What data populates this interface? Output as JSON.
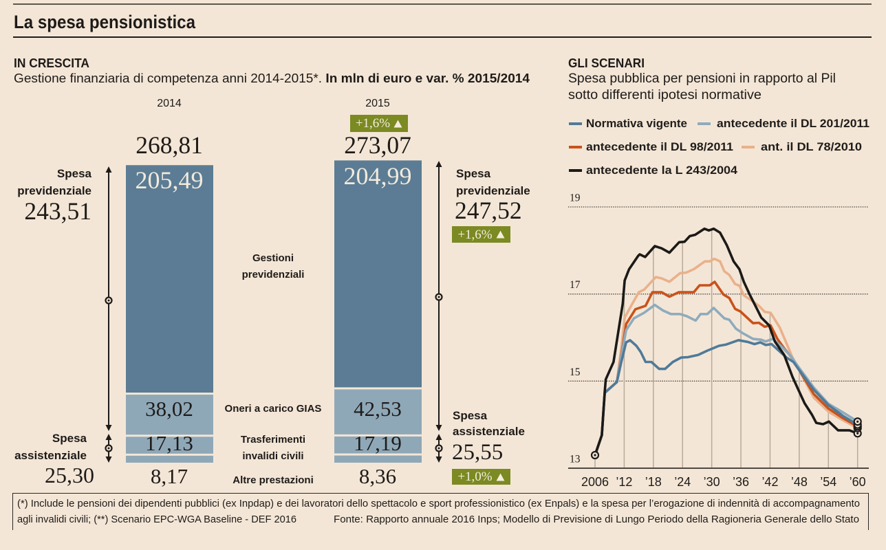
{
  "page": {
    "title": "La spesa pensionistica"
  },
  "colors": {
    "background": "#f4e6d6",
    "badge": "#7b8a22",
    "badge_text": "#f4eedc"
  },
  "chart_data": [
    {
      "type": "bar",
      "stacked": true,
      "title": "IN CRESCITA",
      "subtitle": "Gestione finanziaria di competenza anni 2014-2015*. ",
      "subtitle_bold": "In mln di euro e var. % 2015/2014",
      "unit": "mln di euro",
      "categories": [
        "2014",
        "2015"
      ],
      "series": [
        {
          "name": "Gestioni previdenziali",
          "label_lines": [
            "Gestioni",
            "previdenziali"
          ],
          "values": [
            205.49,
            204.99
          ],
          "color": "#5b7c94"
        },
        {
          "name": "Oneri a carico GIAS",
          "label_lines": [
            "Oneri a carico GIAS"
          ],
          "values": [
            38.02,
            42.53
          ],
          "color": "#8fa8b8"
        },
        {
          "name": "Trasferimenti invalidi civili",
          "label_lines": [
            "Trasferimenti",
            "invalidi civili"
          ],
          "values": [
            17.13,
            17.19
          ],
          "color": "#8fa8b8"
        },
        {
          "name": "Altre prestazioni",
          "label_lines": [
            "Altre prestazioni"
          ],
          "values": [
            8.17,
            8.36
          ],
          "color": "#8fa8b8"
        }
      ],
      "totals": [
        268.81,
        273.07
      ],
      "total_change": "+1,6%",
      "groups": [
        {
          "name": "Spesa previdenziale",
          "label_lines": [
            "Spesa",
            "previdenziale"
          ],
          "values": [
            243.51,
            247.52
          ],
          "change": "+1,6%"
        },
        {
          "name": "Spesa assistenziale",
          "label_lines": [
            "Spesa",
            "assistenziale"
          ],
          "values": [
            25.3,
            25.55
          ],
          "change": "+1,0%"
        }
      ],
      "change_icon": "triangle-up-icon"
    },
    {
      "type": "line",
      "title": "GLI SCENARI",
      "subtitle_lines": [
        "Spesa pubblica per pensioni in rapporto al Pil",
        "sotto differenti ipotesi normative"
      ],
      "xlabel": "",
      "ylabel": "",
      "xlim": [
        2006,
        2060
      ],
      "ylim": [
        13,
        19
      ],
      "yticks": [
        13,
        15,
        17,
        19
      ],
      "ytick_labels": [
        "13",
        "15",
        "17",
        "19"
      ],
      "xticks": [
        2006,
        2012,
        2018,
        2024,
        2030,
        2036,
        2042,
        2048,
        2054,
        2060
      ],
      "xtick_labels": [
        "2006",
        "’12",
        "’18",
        "’24",
        "’30",
        "’36",
        "’42",
        "’48",
        "’54",
        "’60"
      ],
      "grid": {
        "horizontal": "dotted",
        "vertical": "drop-lines"
      },
      "legend_position": "top-left",
      "markers": [
        "start",
        "end"
      ],
      "series": [
        {
          "name": "Normativa vigente",
          "color": "#4f7a99",
          "points": [
            [
              2006,
              13.3
            ],
            [
              2007.4,
              13.76
            ],
            [
              2008,
              14.73
            ],
            [
              2010.5,
              14.98
            ],
            [
              2011.4,
              15.44
            ],
            [
              2012.4,
              15.89
            ],
            [
              2013.2,
              15.94
            ],
            [
              2014.5,
              15.81
            ],
            [
              2015.4,
              15.67
            ],
            [
              2016.4,
              15.44
            ],
            [
              2017.6,
              15.44
            ],
            [
              2019.2,
              15.28
            ],
            [
              2020.4,
              15.28
            ],
            [
              2022,
              15.44
            ],
            [
              2023.7,
              15.54
            ],
            [
              2025.1,
              15.55
            ],
            [
              2027.2,
              15.6
            ],
            [
              2029.1,
              15.7
            ],
            [
              2031.5,
              15.81
            ],
            [
              2033,
              15.84
            ],
            [
              2035.5,
              15.94
            ],
            [
              2037.4,
              15.9
            ],
            [
              2038.8,
              15.85
            ],
            [
              2040,
              15.89
            ],
            [
              2041.1,
              15.83
            ],
            [
              2042.3,
              15.85
            ],
            [
              2043.5,
              15.73
            ],
            [
              2045.4,
              15.54
            ],
            [
              2046.8,
              15.44
            ],
            [
              2048,
              15.25
            ],
            [
              2051,
              14.8
            ],
            [
              2054,
              14.45
            ],
            [
              2057,
              14.2
            ],
            [
              2060,
              14.0
            ]
          ]
        },
        {
          "name": "antecedente il DL 201/2011",
          "color": "#8eabbd",
          "points": [
            [
              2006,
              13.3
            ],
            [
              2007.4,
              13.76
            ],
            [
              2008,
              14.73
            ],
            [
              2010.5,
              14.98
            ],
            [
              2011.7,
              15.75
            ],
            [
              2012.4,
              16.17
            ],
            [
              2014,
              16.44
            ],
            [
              2016.1,
              16.57
            ],
            [
              2018.3,
              16.75
            ],
            [
              2020,
              16.62
            ],
            [
              2021.6,
              16.54
            ],
            [
              2023.5,
              16.54
            ],
            [
              2024.9,
              16.49
            ],
            [
              2026.7,
              16.39
            ],
            [
              2027.7,
              16.54
            ],
            [
              2029.1,
              16.54
            ],
            [
              2030.4,
              16.68
            ],
            [
              2032.6,
              16.44
            ],
            [
              2033.6,
              16.41
            ],
            [
              2035,
              16.2
            ],
            [
              2036.4,
              16.1
            ],
            [
              2038.5,
              15.97
            ],
            [
              2040.2,
              15.95
            ],
            [
              2041.1,
              15.91
            ],
            [
              2042.5,
              15.97
            ],
            [
              2044,
              15.83
            ],
            [
              2046.3,
              15.57
            ],
            [
              2048,
              15.3
            ],
            [
              2051,
              14.85
            ],
            [
              2054,
              14.48
            ],
            [
              2057,
              14.28
            ],
            [
              2060,
              14.07
            ]
          ]
        },
        {
          "name": "antecedente il DL 98/2011",
          "color": "#c9521b",
          "points": [
            [
              2006,
              13.3
            ],
            [
              2007.4,
              13.76
            ],
            [
              2008,
              14.73
            ],
            [
              2010.5,
              14.98
            ],
            [
              2011.7,
              15.8
            ],
            [
              2012.4,
              16.31
            ],
            [
              2014.3,
              16.65
            ],
            [
              2016.4,
              16.73
            ],
            [
              2017.8,
              17.04
            ],
            [
              2019.7,
              17.04
            ],
            [
              2021.3,
              16.94
            ],
            [
              2023.2,
              17.04
            ],
            [
              2026.3,
              17.04
            ],
            [
              2027.5,
              17.2
            ],
            [
              2029.6,
              17.2
            ],
            [
              2030.6,
              17.28
            ],
            [
              2032.4,
              16.99
            ],
            [
              2033.6,
              16.91
            ],
            [
              2034.8,
              16.66
            ],
            [
              2035.9,
              16.6
            ],
            [
              2038.5,
              16.33
            ],
            [
              2039.7,
              16.34
            ],
            [
              2040.9,
              16.25
            ],
            [
              2042.1,
              16.28
            ],
            [
              2043.5,
              15.97
            ],
            [
              2044.9,
              15.75
            ],
            [
              2046.6,
              15.52
            ],
            [
              2048,
              15.25
            ],
            [
              2051,
              14.7
            ],
            [
              2054,
              14.37
            ],
            [
              2057,
              14.15
            ],
            [
              2060,
              13.96
            ]
          ]
        },
        {
          "name": "ant. il DL 78/2010",
          "color": "#e9b18b",
          "points": [
            [
              2006,
              13.3
            ],
            [
              2007.4,
              13.76
            ],
            [
              2008,
              14.73
            ],
            [
              2010.5,
              14.98
            ],
            [
              2011.5,
              15.85
            ],
            [
              2012.1,
              16.46
            ],
            [
              2013.8,
              16.8
            ],
            [
              2015,
              17.04
            ],
            [
              2016.1,
              17.1
            ],
            [
              2018.5,
              17.39
            ],
            [
              2019.7,
              17.36
            ],
            [
              2021.3,
              17.28
            ],
            [
              2023.5,
              17.48
            ],
            [
              2024.7,
              17.49
            ],
            [
              2026.3,
              17.57
            ],
            [
              2028.6,
              17.75
            ],
            [
              2029.6,
              17.75
            ],
            [
              2030.5,
              17.81
            ],
            [
              2031.7,
              17.75
            ],
            [
              2032.6,
              17.52
            ],
            [
              2033.6,
              17.44
            ],
            [
              2034.8,
              17.23
            ],
            [
              2035.7,
              17.19
            ],
            [
              2036.6,
              16.97
            ],
            [
              2038.1,
              16.86
            ],
            [
              2039.7,
              16.73
            ],
            [
              2040.9,
              16.59
            ],
            [
              2042.1,
              16.57
            ],
            [
              2044,
              16.23
            ],
            [
              2045.6,
              15.81
            ],
            [
              2046.6,
              15.54
            ],
            [
              2048,
              15.25
            ],
            [
              2051,
              14.62
            ],
            [
              2054,
              14.3
            ],
            [
              2057,
              14.1
            ],
            [
              2060,
              13.92
            ]
          ]
        },
        {
          "name": "antecedente la L 243/2004",
          "color": "#1b1a18",
          "points": [
            [
              2006,
              13.3
            ],
            [
              2007.4,
              13.76
            ],
            [
              2008,
              14.75
            ],
            [
              2008.2,
              15.04
            ],
            [
              2009.8,
              15.44
            ],
            [
              2011.7,
              16.78
            ],
            [
              2012.1,
              17.31
            ],
            [
              2013,
              17.57
            ],
            [
              2014.9,
              17.88
            ],
            [
              2015.2,
              17.91
            ],
            [
              2016.3,
              17.85
            ],
            [
              2018.3,
              18.1
            ],
            [
              2019.7,
              18.05
            ],
            [
              2021.3,
              17.95
            ],
            [
              2023.3,
              18.19
            ],
            [
              2024.4,
              18.2
            ],
            [
              2025.5,
              18.33
            ],
            [
              2026.6,
              18.36
            ],
            [
              2028.5,
              18.5
            ],
            [
              2029.4,
              18.46
            ],
            [
              2030.4,
              18.5
            ],
            [
              2031.7,
              18.41
            ],
            [
              2033.1,
              18.12
            ],
            [
              2034.5,
              17.75
            ],
            [
              2035.7,
              17.57
            ],
            [
              2036.6,
              17.28
            ],
            [
              2037.8,
              16.99
            ],
            [
              2039.2,
              16.68
            ],
            [
              2040.2,
              16.46
            ],
            [
              2041.8,
              16.28
            ],
            [
              2043,
              15.91
            ],
            [
              2044.9,
              15.6
            ],
            [
              2046.6,
              15.1
            ],
            [
              2047.7,
              14.83
            ],
            [
              2049.1,
              14.49
            ],
            [
              2050.6,
              14.23
            ],
            [
              2051.5,
              14.04
            ],
            [
              2052.9,
              14.01
            ],
            [
              2054.1,
              14.07
            ],
            [
              2056,
              13.87
            ],
            [
              2058.3,
              13.87
            ],
            [
              2060,
              13.8
            ]
          ]
        }
      ]
    }
  ],
  "footer": {
    "note_line1": "(*) Include le pensioni dei dipendenti pubblici (ex Inpdap) e dei lavoratori dello spettacolo e sport professionistico (ex Enpals) e la spesa per l’erogazione di indennità di accompagnamento",
    "note_line2": "agli invalidi civili; (**) Scenario EPC-WGA Baseline - DEF 2016",
    "source": "Fonte: Rapporto annuale 2016 Inps; Modello di Previsione di Lungo Periodo della Ragioneria Generale dello Stato"
  }
}
